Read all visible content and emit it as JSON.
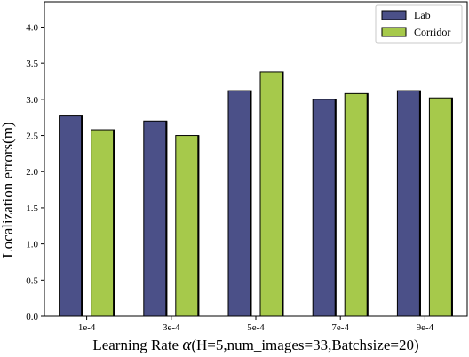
{
  "chart_data": {
    "type": "bar",
    "categories": [
      "1e-4",
      "3e-4",
      "5e-4",
      "7e-4",
      "9e-4"
    ],
    "series": [
      {
        "name": "Lab",
        "values": [
          2.77,
          2.7,
          3.12,
          3.0,
          3.12
        ],
        "color": "#4b5088"
      },
      {
        "name": "Corridor",
        "values": [
          2.58,
          2.5,
          3.38,
          3.08,
          3.02
        ],
        "color": "#a6c94b"
      }
    ],
    "xlabel_prefix": "Learning Rate ",
    "xlabel_symbol": "α",
    "xlabel_suffix": "(H=5,num_images=33,Batchsize=20)",
    "ylabel": "Localization errors(m)",
    "ylim": [
      0,
      4.35
    ],
    "yticks": [
      "0.0",
      "0.5",
      "1.0",
      "1.5",
      "2.0",
      "2.5",
      "3.0",
      "3.5",
      "4.0"
    ],
    "legend_position": "top-right",
    "grid": false
  }
}
